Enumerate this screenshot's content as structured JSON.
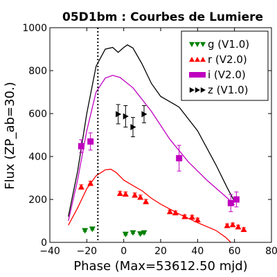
{
  "chart_data": {
    "type": "scatter",
    "title": "05D1bm : Courbes de Lumiere",
    "xlabel": "Phase (Max=53612.50 mjd)",
    "ylabel": "Flux (ZP_ab=30.)",
    "xlim": [
      -40,
      80
    ],
    "ylim": [
      0,
      1000
    ],
    "xticks": [
      -40,
      -20,
      0,
      20,
      40,
      60,
      80
    ],
    "yticks": [
      0,
      200,
      400,
      600,
      800,
      1000
    ],
    "grid": false,
    "legend_position": "top-right",
    "vline_x": -14,
    "series": [
      {
        "name": "g (V1.0)",
        "color": "#008000",
        "marker": "triangle-down",
        "points": [
          {
            "x": -21,
            "y": 55,
            "err": 4
          },
          {
            "x": -17,
            "y": 62,
            "err": 4
          },
          {
            "x": 1,
            "y": 38,
            "err": 4
          },
          {
            "x": 5,
            "y": 45,
            "err": 4
          },
          {
            "x": 9,
            "y": 40,
            "err": 4
          },
          {
            "x": 11,
            "y": 45,
            "err": 4
          }
        ]
      },
      {
        "name": "r (V2.0)",
        "color": "#ff0000",
        "marker": "triangle-up",
        "points": [
          {
            "x": -23,
            "y": 258,
            "err": 10
          },
          {
            "x": -18,
            "y": 275,
            "err": 10
          },
          {
            "x": -2,
            "y": 228,
            "err": 10
          },
          {
            "x": 1,
            "y": 225,
            "err": 10
          },
          {
            "x": 6,
            "y": 220,
            "err": 10
          },
          {
            "x": 9,
            "y": 210,
            "err": 10
          },
          {
            "x": 12,
            "y": 190,
            "err": 10
          },
          {
            "x": 25,
            "y": 143,
            "err": 8
          },
          {
            "x": 28,
            "y": 138,
            "err": 8
          },
          {
            "x": 33,
            "y": 120,
            "err": 8
          },
          {
            "x": 37,
            "y": 118,
            "err": 8
          },
          {
            "x": 40,
            "y": 105,
            "err": 8
          },
          {
            "x": 56,
            "y": 78,
            "err": 8
          },
          {
            "x": 59,
            "y": 82,
            "err": 8
          },
          {
            "x": 62,
            "y": 72,
            "err": 8
          },
          {
            "x": 65,
            "y": 60,
            "err": 8
          }
        ]
      },
      {
        "name": "i (V2.0)",
        "color": "#bf00bf",
        "marker": "square",
        "points": [
          {
            "x": -23,
            "y": 448,
            "err": 30
          },
          {
            "x": -18,
            "y": 470,
            "err": 40
          },
          {
            "x": 30,
            "y": 392,
            "err": 60
          },
          {
            "x": 58,
            "y": 183,
            "err": 40
          },
          {
            "x": 61,
            "y": 200,
            "err": 35
          }
        ]
      },
      {
        "name": "z (V1.0)",
        "color": "#000000",
        "marker": "triangle-right",
        "points": [
          {
            "x": -3,
            "y": 597,
            "err": 45
          },
          {
            "x": 1,
            "y": 587,
            "err": 50
          },
          {
            "x": 5,
            "y": 537,
            "err": 45
          },
          {
            "x": 11,
            "y": 597,
            "err": 40
          }
        ]
      }
    ],
    "curves": [
      {
        "color": "#000000",
        "points": [
          [
            -30,
            120
          ],
          [
            -25,
            330
          ],
          [
            -20,
            600
          ],
          [
            -15,
            820
          ],
          [
            -10,
            900
          ],
          [
            -6,
            908
          ],
          [
            -3,
            885
          ],
          [
            0,
            908
          ],
          [
            2,
            920
          ],
          [
            5,
            905
          ],
          [
            10,
            830
          ],
          [
            15,
            740
          ],
          [
            20,
            680
          ],
          [
            30,
            630
          ],
          [
            40,
            520
          ],
          [
            50,
            360
          ],
          [
            56,
            255
          ],
          [
            60,
            190
          ]
        ]
      },
      {
        "color": "#bf00bf",
        "points": [
          [
            -30,
            100
          ],
          [
            -25,
            290
          ],
          [
            -20,
            520
          ],
          [
            -15,
            700
          ],
          [
            -10,
            765
          ],
          [
            -6,
            778
          ],
          [
            -2,
            768
          ],
          [
            5,
            720
          ],
          [
            15,
            610
          ],
          [
            25,
            480
          ],
          [
            35,
            375
          ],
          [
            45,
            290
          ],
          [
            55,
            215
          ],
          [
            60,
            175
          ]
        ]
      },
      {
        "color": "#ff0000",
        "points": [
          [
            -30,
            80
          ],
          [
            -25,
            160
          ],
          [
            -20,
            250
          ],
          [
            -15,
            310
          ],
          [
            -10,
            338
          ],
          [
            -7,
            341
          ],
          [
            -4,
            325
          ],
          [
            0,
            290
          ],
          [
            5,
            265
          ],
          [
            10,
            240
          ],
          [
            15,
            205
          ],
          [
            20,
            178
          ],
          [
            30,
            132
          ],
          [
            40,
            92
          ],
          [
            50,
            55
          ],
          [
            55,
            25
          ],
          [
            58,
            0
          ]
        ]
      }
    ]
  }
}
